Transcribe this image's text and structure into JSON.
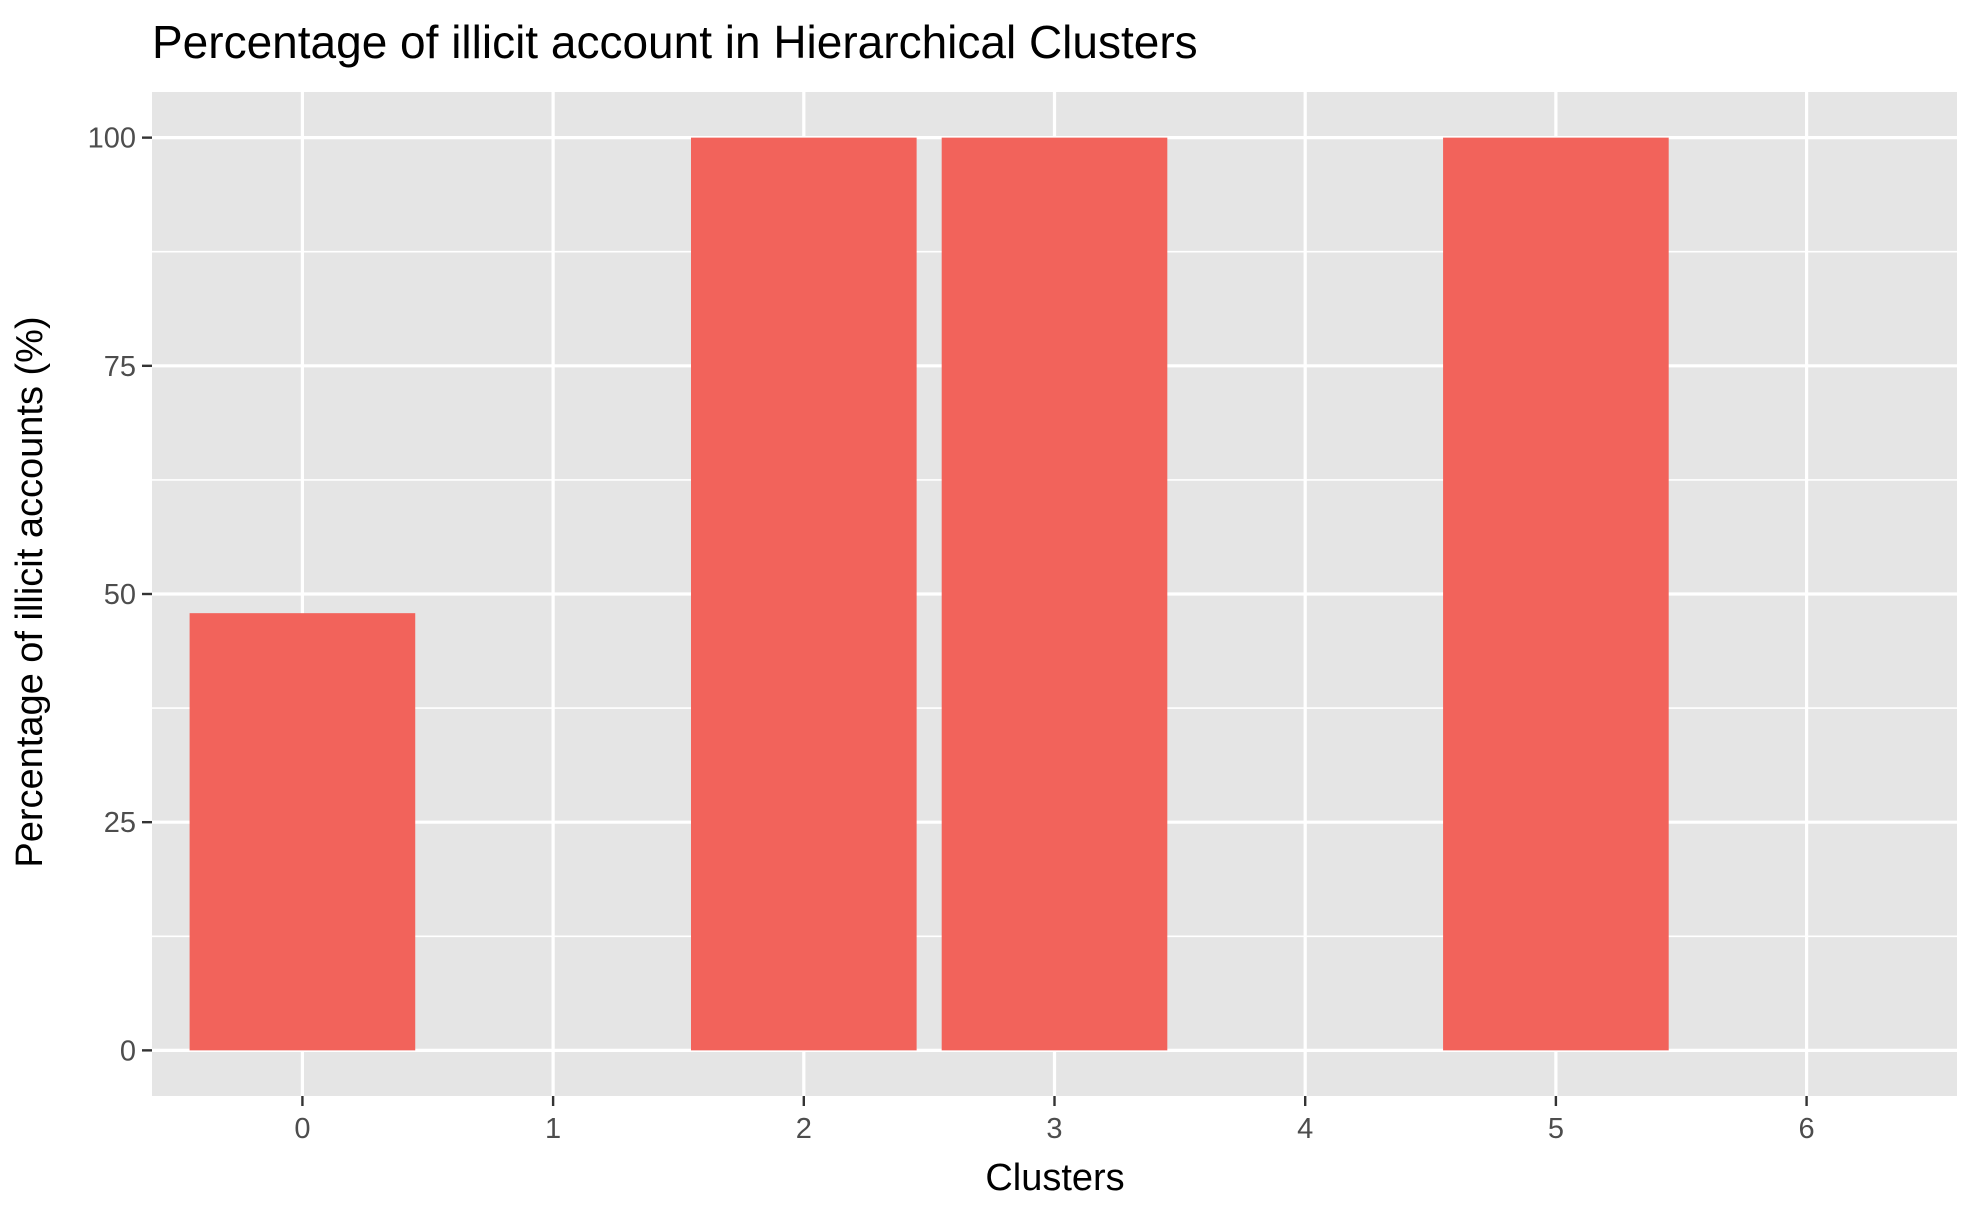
{
  "chart_data": {
    "type": "bar",
    "title": "Percentage of illicit account in Hierarchical Clusters",
    "xlabel": "Clusters",
    "ylabel": "Percentage of illicit accounts (%)",
    "categories": [
      "0",
      "1",
      "2",
      "3",
      "4",
      "5",
      "6"
    ],
    "values": [
      47.9,
      0,
      100,
      100,
      0,
      100,
      0
    ],
    "ylim": [
      -5,
      105
    ],
    "yticks": [
      0,
      25,
      50,
      75,
      100
    ],
    "grid": true,
    "legend": "none",
    "colors": {
      "bar": "#F2635B",
      "panel": "#E5E5E5",
      "grid": "#FFFFFF"
    }
  }
}
